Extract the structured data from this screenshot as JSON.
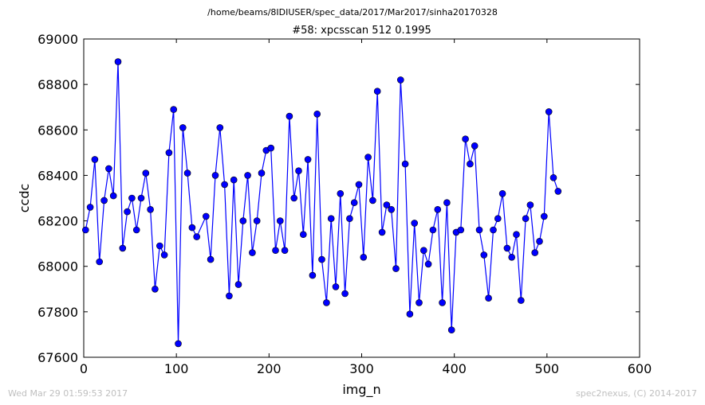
{
  "header": {
    "suptitle": "/home/beams/8IDIUSER/spec_data/2017/Mar2017/sinha20170328"
  },
  "footer": {
    "timestamp": "Wed Mar 29 01:59:53 2017",
    "credit": "spec2nexus, (C) 2014-2017"
  },
  "chart_data": {
    "type": "line",
    "title": "#58: xpcsscan 512 0.1995",
    "xlabel": "img_n",
    "ylabel": "ccdc",
    "xlim": [
      0,
      600
    ],
    "ylim": [
      67600,
      69000
    ],
    "xticks": [
      0,
      100,
      200,
      300,
      400,
      500,
      600
    ],
    "yticks": [
      67600,
      67800,
      68000,
      68200,
      68400,
      68600,
      68800,
      69000
    ],
    "grid": false,
    "series": [
      {
        "color": "#0000ff",
        "marker": "circle",
        "x": [
          2,
          7,
          12,
          17,
          22,
          27,
          32,
          37,
          42,
          47,
          52,
          57,
          62,
          67,
          72,
          77,
          82,
          87,
          92,
          97,
          102,
          107,
          112,
          117,
          122,
          132,
          137,
          142,
          147,
          152,
          157,
          162,
          167,
          172,
          177,
          182,
          187,
          192,
          197,
          202,
          207,
          212,
          217,
          222,
          227,
          232,
          237,
          242,
          247,
          252,
          257,
          262,
          267,
          272,
          277,
          282,
          287,
          292,
          297,
          302,
          307,
          312,
          317,
          322,
          327,
          332,
          337,
          342,
          347,
          352,
          357,
          362,
          367,
          372,
          377,
          382,
          387,
          392,
          397,
          402,
          407,
          412,
          417,
          422,
          427,
          432,
          437,
          442,
          447,
          452,
          457,
          462,
          467,
          472,
          477,
          482,
          487,
          492,
          497,
          502,
          507,
          512
        ],
        "y": [
          68160,
          68260,
          68470,
          68020,
          68290,
          68430,
          68310,
          68900,
          68080,
          68240,
          68300,
          68160,
          68300,
          68410,
          68250,
          67900,
          68090,
          68050,
          68500,
          68690,
          67660,
          68610,
          68410,
          68170,
          68130,
          68220,
          68030,
          68400,
          68610,
          68360,
          67870,
          68380,
          67920,
          68200,
          68400,
          68060,
          68200,
          68410,
          68510,
          68520,
          68070,
          68200,
          68070,
          68660,
          68300,
          68420,
          68140,
          68470,
          67960,
          68670,
          68030,
          67840,
          68210,
          67910,
          68320,
          67880,
          68210,
          68280,
          68360,
          68040,
          68480,
          68290,
          68770,
          68150,
          68270,
          68250,
          67990,
          68820,
          68450,
          67790,
          68190,
          67840,
          68070,
          68010,
          68160,
          68250,
          67840,
          68280,
          67720,
          68150,
          68160,
          68560,
          68450,
          68530,
          68160,
          68050,
          67860,
          68160,
          68210,
          68320,
          68080,
          68040,
          68140,
          67850,
          68210,
          68270,
          68060,
          68110,
          68220,
          68680,
          68390,
          68330
        ]
      }
    ]
  }
}
